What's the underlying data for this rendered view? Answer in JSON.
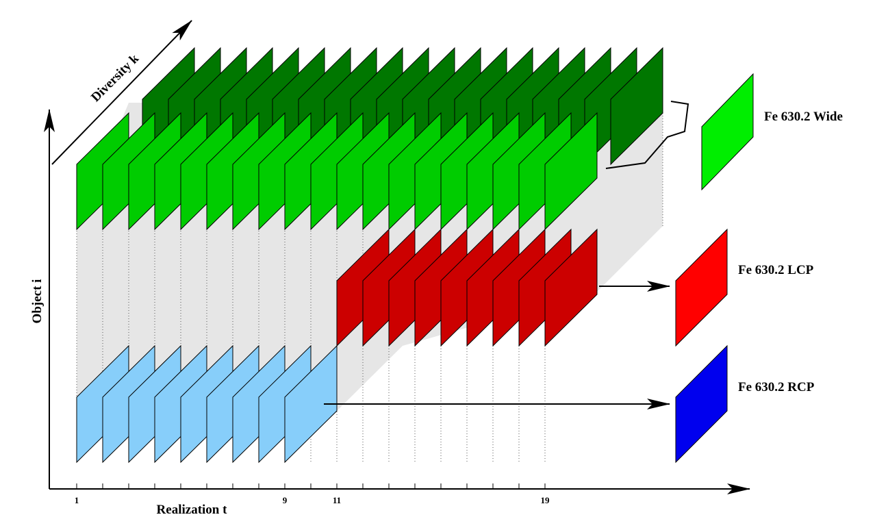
{
  "axes": {
    "x_label": "Realization  t",
    "y_label": "Object  i",
    "z_label": "Diversity  k"
  },
  "x_ticks": [
    "1",
    "9",
    "11",
    "19"
  ],
  "legend": [
    {
      "label": "Fe 630.2 Wide"
    },
    {
      "label": "Fe 630.2 LCP"
    },
    {
      "label": "Fe 630.2 RCP"
    }
  ]
}
